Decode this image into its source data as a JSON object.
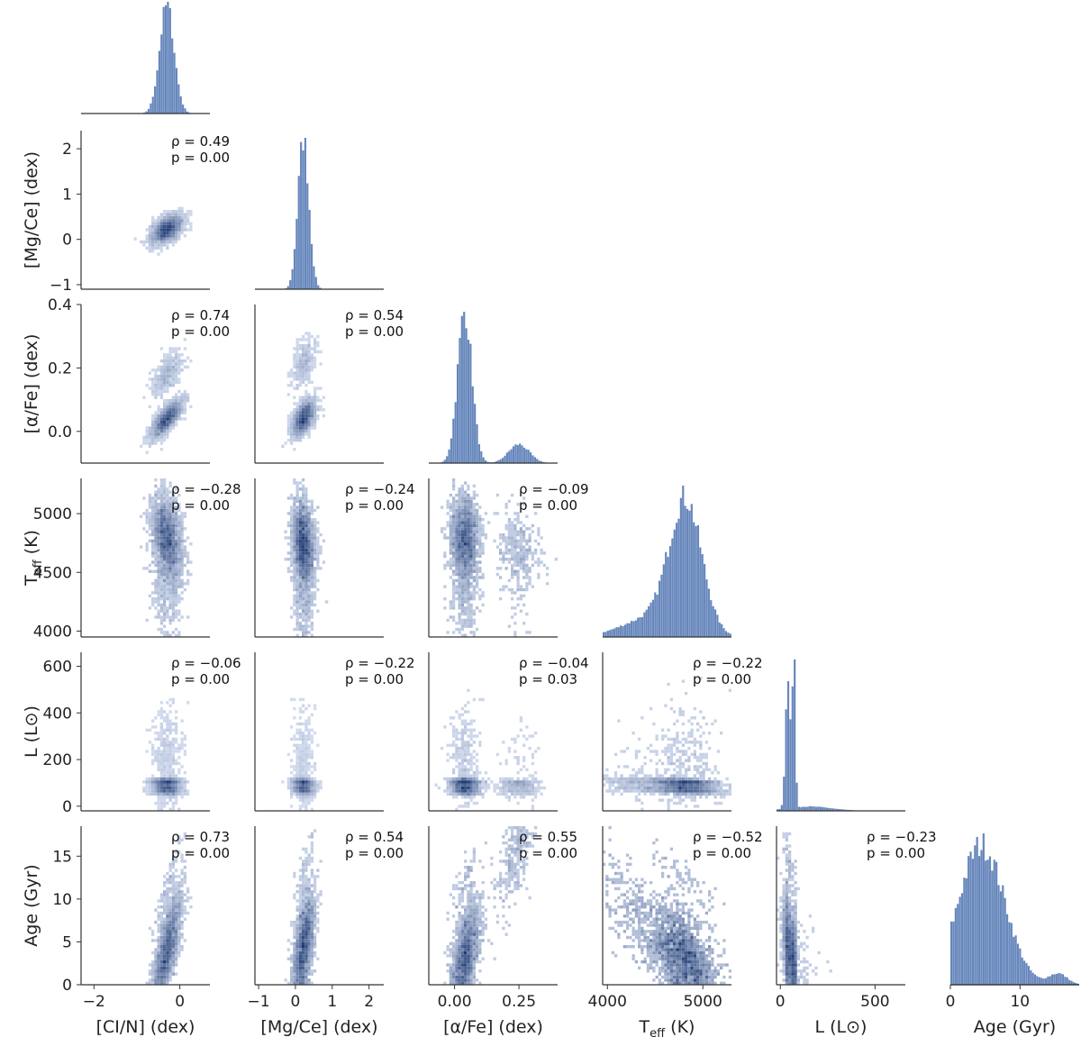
{
  "chart_data": {
    "type": "heatmap",
    "title": "",
    "grid": false,
    "colors": {
      "hist": "#4c72b0",
      "density_low": "#e8eef8",
      "density_high": "#1f3a6e",
      "axis": "#333333"
    },
    "variables": [
      {
        "key": "cin",
        "label": "[CI/N] (dex)",
        "range": [
          -2.3,
          0.7
        ],
        "ticks": [
          -2,
          0
        ],
        "tick_labels": [
          "−2",
          "0"
        ],
        "ylabel": ""
      },
      {
        "key": "mgce",
        "label": "[Mg/Ce] (dex)",
        "range": [
          -1.1,
          2.4
        ],
        "ticks": [
          -1,
          0,
          1,
          2
        ],
        "tick_labels": [
          "−1",
          "0",
          "1",
          "2"
        ],
        "ylabel": "[Mg/Ce] (dex)"
      },
      {
        "key": "alpha",
        "label": "[α/Fe] (dex)",
        "range": [
          -0.1,
          0.4
        ],
        "ticks": [
          0.0,
          0.2,
          0.4
        ],
        "tick_labels": [
          "0.0",
          "0.2",
          "0.4"
        ],
        "xticks": [
          0.0,
          0.25
        ],
        "xtick_labels": [
          "0.00",
          "0.25"
        ],
        "ylabel": "[α/Fe] (dex)"
      },
      {
        "key": "teff",
        "label": "Teff (K)",
        "label_main": "T",
        "label_sub": "eff",
        "label_rest": " (K)",
        "range": [
          3950,
          5300
        ],
        "ticks": [
          4000,
          4500,
          5000
        ],
        "tick_labels": [
          "4000",
          "4500",
          "5000"
        ],
        "xticks": [
          4000,
          5000
        ],
        "xtick_labels": [
          "4000",
          "5000"
        ],
        "ylabel": "Teff (K)"
      },
      {
        "key": "lum",
        "label": "L (L⊙)",
        "range": [
          -20,
          660
        ],
        "ticks": [
          0,
          200,
          400,
          600
        ],
        "tick_labels": [
          "0",
          "200",
          "400",
          "600"
        ],
        "xticks": [
          0,
          500
        ],
        "xtick_labels": [
          "0",
          "500"
        ],
        "ylabel": "L (L⊙)"
      },
      {
        "key": "age",
        "label": "Age (Gyr)",
        "range": [
          0,
          18.5
        ],
        "ticks": [
          0,
          5,
          10,
          15
        ],
        "tick_labels": [
          "0",
          "5",
          "10",
          "15"
        ],
        "xticks": [
          0,
          10
        ],
        "xtick_labels": [
          "0",
          "10"
        ],
        "ylabel": "Age (Gyr)"
      }
    ],
    "correlations": [
      {
        "row": 1,
        "col": 0,
        "rho": "ρ = 0.49",
        "p": "p = 0.00"
      },
      {
        "row": 2,
        "col": 0,
        "rho": "ρ = 0.74",
        "p": "p = 0.00"
      },
      {
        "row": 2,
        "col": 1,
        "rho": "ρ = 0.54",
        "p": "p = 0.00"
      },
      {
        "row": 3,
        "col": 0,
        "rho": "ρ = −0.28",
        "p": "p = 0.00"
      },
      {
        "row": 3,
        "col": 1,
        "rho": "ρ = −0.24",
        "p": "p = 0.00"
      },
      {
        "row": 3,
        "col": 2,
        "rho": "ρ = −0.09",
        "p": "p = 0.00"
      },
      {
        "row": 4,
        "col": 0,
        "rho": "ρ = −0.06",
        "p": "p = 0.00"
      },
      {
        "row": 4,
        "col": 1,
        "rho": "ρ = −0.22",
        "p": "p = 0.00"
      },
      {
        "row": 4,
        "col": 2,
        "rho": "ρ = −0.04",
        "p": "p = 0.03"
      },
      {
        "row": 4,
        "col": 3,
        "rho": "ρ = −0.22",
        "p": "p = 0.00"
      },
      {
        "row": 5,
        "col": 0,
        "rho": "ρ = 0.73",
        "p": "p = 0.00"
      },
      {
        "row": 5,
        "col": 1,
        "rho": "ρ = 0.54",
        "p": "p = 0.00"
      },
      {
        "row": 5,
        "col": 2,
        "rho": "ρ = 0.55",
        "p": "p = 0.00"
      },
      {
        "row": 5,
        "col": 3,
        "rho": "ρ = −0.52",
        "p": "p = 0.00"
      },
      {
        "row": 5,
        "col": 4,
        "rho": "ρ = −0.23",
        "p": "p = 0.00"
      }
    ],
    "marginals": [
      {
        "var": "cin",
        "components": [
          {
            "mu": -0.3,
            "sigma": 0.17,
            "w": 1.0
          }
        ]
      },
      {
        "var": "mgce",
        "components": [
          {
            "mu": 0.22,
            "sigma": 0.15,
            "w": 1.0
          }
        ]
      },
      {
        "var": "alpha",
        "components": [
          {
            "mu": 0.04,
            "sigma": 0.028,
            "w": 0.85
          },
          {
            "mu": 0.25,
            "sigma": 0.04,
            "w": 0.15
          }
        ]
      },
      {
        "var": "teff",
        "components": [
          {
            "mu": 4820,
            "sigma": 170,
            "w": 0.8
          },
          {
            "mu": 4450,
            "sigma": 300,
            "w": 0.2
          }
        ]
      },
      {
        "var": "lum",
        "components": [
          {
            "mu": 40,
            "sigma": 12,
            "w": 0.45
          },
          {
            "mu": 72,
            "sigma": 8,
            "w": 0.4
          },
          {
            "mu": 150,
            "sigma": 120,
            "w": 0.15
          }
        ]
      },
      {
        "var": "age",
        "components": [
          {
            "mu": 4.5,
            "sigma": 3.3,
            "w": 0.97
          },
          {
            "mu": 15.5,
            "sigma": 1.3,
            "w": 0.03
          }
        ]
      }
    ],
    "density_centers": [
      {
        "row": 1,
        "col": 0,
        "x": -0.3,
        "y": 0.22
      },
      {
        "row": 2,
        "col": 0,
        "x": -0.3,
        "y": 0.04
      },
      {
        "row": 2,
        "col": 1,
        "x": 0.2,
        "y": 0.04
      },
      {
        "row": 3,
        "col": 0,
        "x": -0.3,
        "y": 4800
      },
      {
        "row": 3,
        "col": 1,
        "x": 0.2,
        "y": 4750
      },
      {
        "row": 3,
        "col": 2,
        "x": 0.04,
        "y": 4800
      },
      {
        "row": 4,
        "col": 0,
        "x": -0.3,
        "y": 72
      },
      {
        "row": 4,
        "col": 1,
        "x": 0.2,
        "y": 72
      },
      {
        "row": 4,
        "col": 2,
        "x": 0.04,
        "y": 72
      },
      {
        "row": 4,
        "col": 3,
        "x": 4800,
        "y": 72
      },
      {
        "row": 5,
        "col": 0,
        "x": -0.3,
        "y": 4
      },
      {
        "row": 5,
        "col": 1,
        "x": 0.2,
        "y": 4
      },
      {
        "row": 5,
        "col": 2,
        "x": 0.04,
        "y": 3
      },
      {
        "row": 5,
        "col": 3,
        "x": 4800,
        "y": 3
      },
      {
        "row": 5,
        "col": 4,
        "x": 60,
        "y": 3
      }
    ]
  }
}
